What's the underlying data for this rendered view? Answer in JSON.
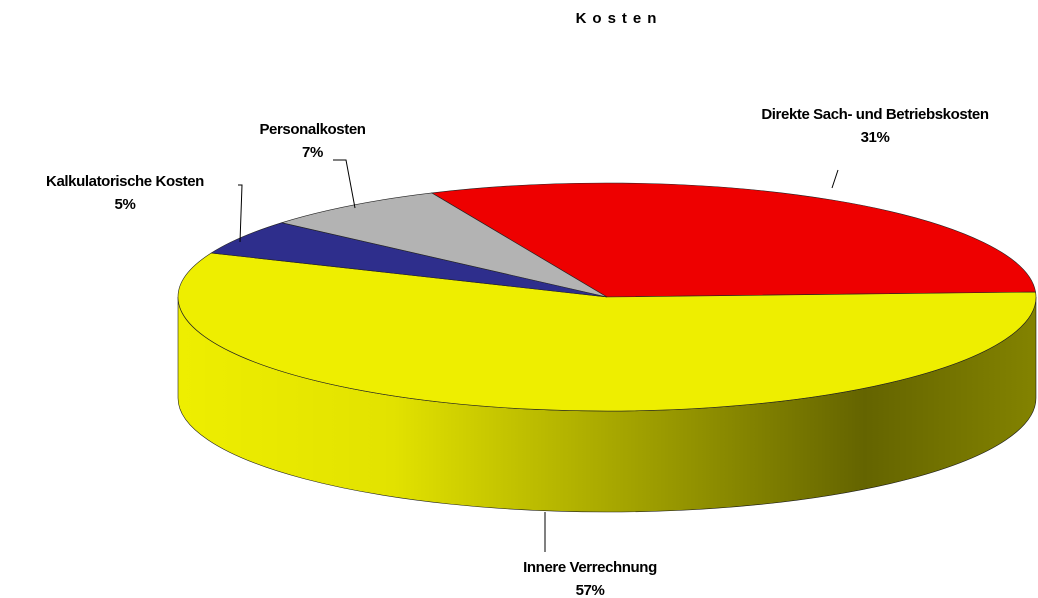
{
  "chart_data": {
    "type": "pie",
    "title": "Kosten",
    "categories": [
      "Direkte Sach- und Betriebskosten",
      "Innere Verrechnung",
      "Kalkulatorische Kosten",
      "Personalkosten"
    ],
    "values": [
      31,
      57,
      5,
      7
    ],
    "value_labels": [
      "31%",
      "57%",
      "5%",
      "7%"
    ],
    "colors": [
      "#ee0000",
      "#eeee00",
      "#2e2e8c",
      "#b3b3b3"
    ]
  }
}
